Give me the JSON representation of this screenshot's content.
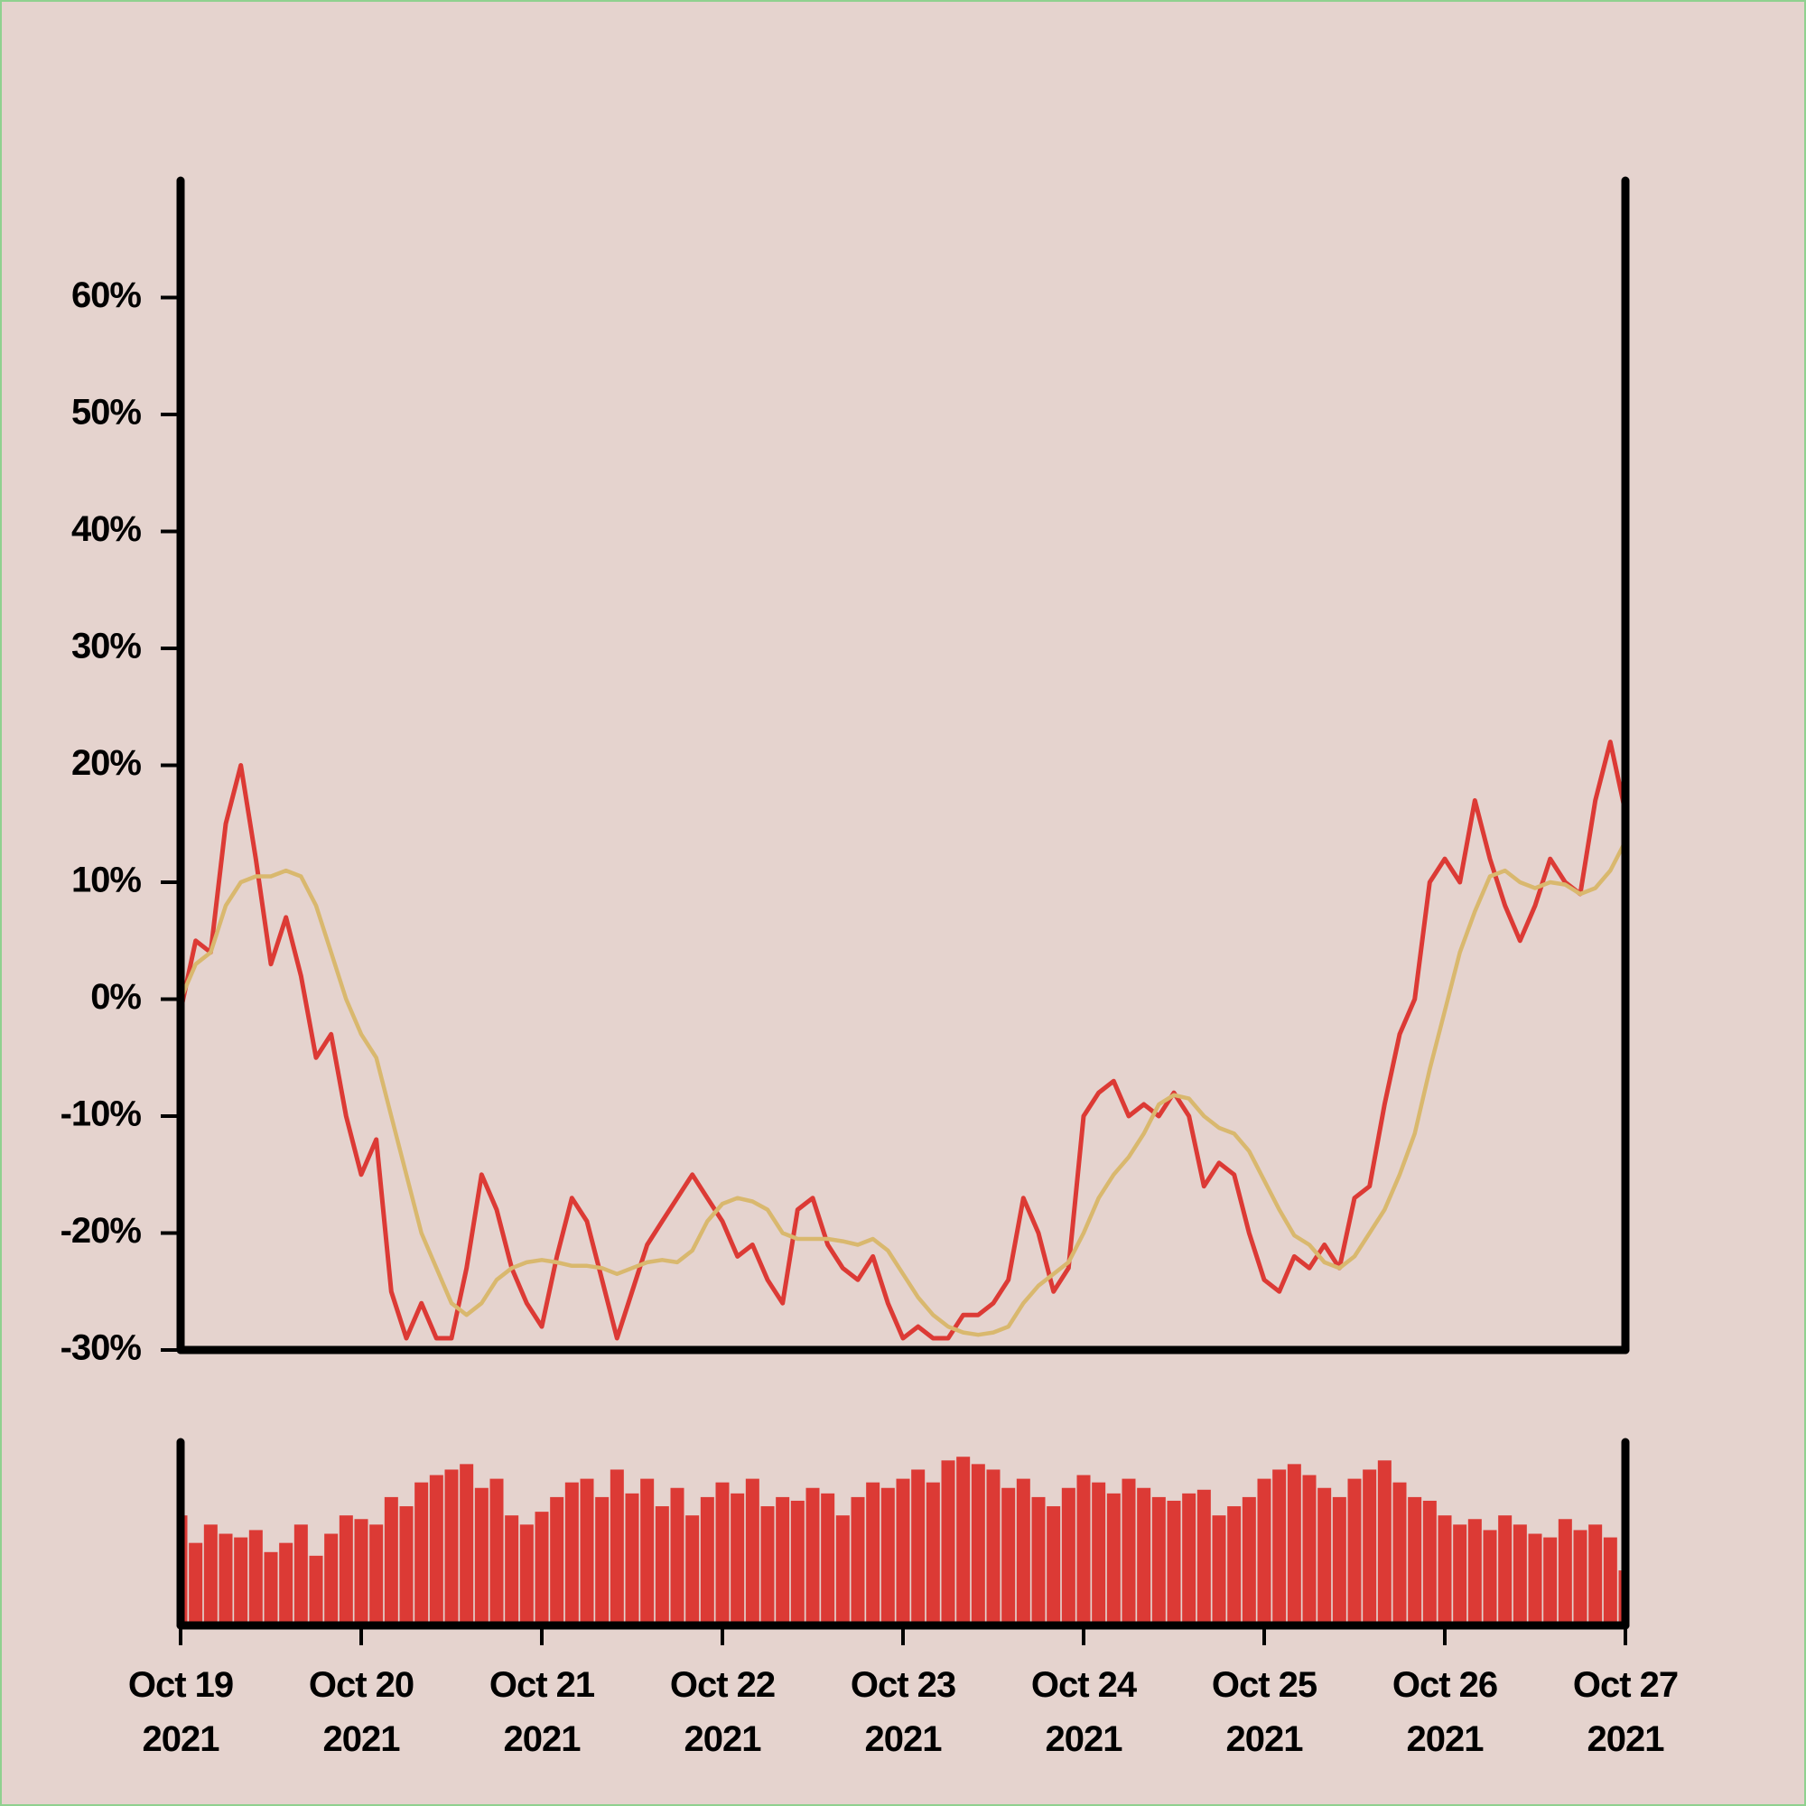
{
  "chart_data": {
    "type": "line",
    "x": [
      "2021-10-19T00:00",
      "2021-10-19T02:00",
      "2021-10-19T04:00",
      "2021-10-19T06:00",
      "2021-10-19T08:00",
      "2021-10-19T10:00",
      "2021-10-19T12:00",
      "2021-10-19T14:00",
      "2021-10-19T16:00",
      "2021-10-19T18:00",
      "2021-10-19T20:00",
      "2021-10-19T22:00",
      "2021-10-20T00:00",
      "2021-10-20T02:00",
      "2021-10-20T04:00",
      "2021-10-20T06:00",
      "2021-10-20T08:00",
      "2021-10-20T10:00",
      "2021-10-20T12:00",
      "2021-10-20T14:00",
      "2021-10-20T16:00",
      "2021-10-20T18:00",
      "2021-10-20T20:00",
      "2021-10-20T22:00",
      "2021-10-21T00:00",
      "2021-10-21T02:00",
      "2021-10-21T04:00",
      "2021-10-21T06:00",
      "2021-10-21T08:00",
      "2021-10-21T10:00",
      "2021-10-21T12:00",
      "2021-10-21T14:00",
      "2021-10-21T16:00",
      "2021-10-21T18:00",
      "2021-10-21T20:00",
      "2021-10-21T22:00",
      "2021-10-22T00:00",
      "2021-10-22T02:00",
      "2021-10-22T04:00",
      "2021-10-22T06:00",
      "2021-10-22T08:00",
      "2021-10-22T10:00",
      "2021-10-22T12:00",
      "2021-10-22T14:00",
      "2021-10-22T16:00",
      "2021-10-22T18:00",
      "2021-10-22T20:00",
      "2021-10-22T22:00",
      "2021-10-23T00:00",
      "2021-10-23T02:00",
      "2021-10-23T04:00",
      "2021-10-23T06:00",
      "2021-10-23T08:00",
      "2021-10-23T10:00",
      "2021-10-23T12:00",
      "2021-10-23T14:00",
      "2021-10-23T16:00",
      "2021-10-23T18:00",
      "2021-10-23T20:00",
      "2021-10-23T22:00",
      "2021-10-24T00:00",
      "2021-10-24T02:00",
      "2021-10-24T04:00",
      "2021-10-24T06:00",
      "2021-10-24T08:00",
      "2021-10-24T10:00",
      "2021-10-24T12:00",
      "2021-10-24T14:00",
      "2021-10-24T16:00",
      "2021-10-24T18:00",
      "2021-10-24T20:00",
      "2021-10-24T22:00",
      "2021-10-25T00:00",
      "2021-10-25T02:00",
      "2021-10-25T04:00",
      "2021-10-25T06:00",
      "2021-10-25T08:00",
      "2021-10-25T10:00",
      "2021-10-25T12:00",
      "2021-10-25T14:00",
      "2021-10-25T16:00",
      "2021-10-25T18:00",
      "2021-10-25T20:00",
      "2021-10-25T22:00",
      "2021-10-26T00:00",
      "2021-10-26T02:00",
      "2021-10-26T04:00",
      "2021-10-26T06:00",
      "2021-10-26T08:00",
      "2021-10-26T10:00",
      "2021-10-26T12:00",
      "2021-10-26T14:00",
      "2021-10-26T16:00",
      "2021-10-26T18:00",
      "2021-10-26T20:00",
      "2021-10-26T22:00",
      "2021-10-27T00:00"
    ],
    "series": [
      {
        "color": "#dc3a35",
        "values": [
          -1,
          5,
          4,
          15,
          20,
          12,
          3,
          7,
          2,
          -5,
          -3,
          -10,
          -15,
          -12,
          -25,
          -29,
          -26,
          -29,
          -29,
          -23,
          -15,
          -18,
          -23,
          -26,
          -28,
          -22,
          -17,
          -19,
          -24,
          -29,
          -25,
          -21,
          -19,
          -17,
          -15,
          -17,
          -19,
          -22,
          -21,
          -24,
          -26,
          -18,
          -17,
          -21,
          -23,
          -24,
          -22,
          -26,
          -29,
          -28,
          -29,
          -29,
          -27,
          -27,
          -26,
          -24,
          -17,
          -20,
          -25,
          -23,
          -10,
          -8,
          -7,
          -10,
          -9,
          -10,
          -8,
          -10,
          -16,
          -14,
          -15,
          -20,
          -24,
          -25,
          -22,
          -23,
          -21,
          -23,
          -17,
          -16,
          -9,
          -3,
          0,
          10,
          12,
          10,
          17,
          12,
          8,
          5,
          8,
          12,
          10,
          9,
          17,
          22,
          16
        ]
      },
      {
        "color": "#d9b86e",
        "values": [
          0,
          3,
          4,
          8,
          10,
          10.5,
          10.5,
          11,
          10.5,
          8,
          4,
          0,
          -3,
          -5,
          -10,
          -15,
          -20,
          -23,
          -26,
          -27,
          -26,
          -24,
          -23,
          -22.5,
          -22.3,
          -22.5,
          -22.8,
          -22.8,
          -23,
          -23.5,
          -23,
          -22.5,
          -22.3,
          -22.5,
          -21.5,
          -19,
          -17.5,
          -17,
          -17.3,
          -18,
          -20,
          -20.5,
          -20.5,
          -20.5,
          -20.7,
          -21,
          -20.5,
          -21.5,
          -23.5,
          -25.5,
          -27,
          -28,
          -28.5,
          -28.7,
          -28.5,
          -28,
          -26,
          -24.5,
          -23.5,
          -22.5,
          -20,
          -17,
          -15,
          -13.5,
          -11.5,
          -9,
          -8.2,
          -8.5,
          -10,
          -11,
          -11.5,
          -13,
          -15.5,
          -18,
          -20.2,
          -21,
          -22.5,
          -23,
          -22,
          -20,
          -18,
          -15,
          -11.5,
          -6,
          -1,
          4,
          7.5,
          10.5,
          11,
          10,
          9.5,
          10,
          9.8,
          9,
          9.5,
          11,
          13.5
        ]
      },
      {
        "type": "bar",
        "axis": "y2",
        "color": "#dc3a35",
        "values": [
          60,
          45,
          55,
          50,
          48,
          52,
          40,
          45,
          55,
          38,
          50,
          60,
          58,
          55,
          70,
          65,
          78,
          82,
          85,
          88,
          75,
          80,
          60,
          55,
          62,
          70,
          78,
          80,
          70,
          85,
          72,
          80,
          65,
          75,
          60,
          70,
          78,
          72,
          80,
          65,
          70,
          68,
          75,
          72,
          60,
          70,
          78,
          75,
          80,
          85,
          78,
          90,
          92,
          88,
          85,
          75,
          80,
          70,
          65,
          75,
          82,
          78,
          72,
          80,
          75,
          70,
          68,
          72,
          74,
          60,
          65,
          70,
          80,
          85,
          88,
          82,
          75,
          70,
          80,
          85,
          90,
          78,
          70,
          68,
          60,
          55,
          58,
          52,
          60,
          55,
          50,
          48,
          58,
          52,
          55,
          48,
          30
        ]
      }
    ],
    "xlim": [
      "2021-10-19T00:00",
      "2021-10-27T00:00"
    ],
    "xticks": [
      {
        "value": "2021-10-19T00:00",
        "label": "Oct 19\n2021"
      },
      {
        "value": "2021-10-20T00:00",
        "label": "Oct 20\n2021"
      },
      {
        "value": "2021-10-21T00:00",
        "label": "Oct 21\n2021"
      },
      {
        "value": "2021-10-22T00:00",
        "label": "Oct 22\n2021"
      },
      {
        "value": "2021-10-23T00:00",
        "label": "Oct 23\n2021"
      },
      {
        "value": "2021-10-24T00:00",
        "label": "Oct 24\n2021"
      },
      {
        "value": "2021-10-25T00:00",
        "label": "Oct 25\n2021"
      },
      {
        "value": "2021-10-26T00:00",
        "label": "Oct 26\n2021"
      },
      {
        "value": "2021-10-27T00:00",
        "label": "Oct 27\n2021"
      }
    ],
    "ylim": [
      -30,
      70
    ],
    "yticks": [
      {
        "value": -30,
        "label": "-30%"
      },
      {
        "value": -20,
        "label": "-20%"
      },
      {
        "value": -10,
        "label": "-10%"
      },
      {
        "value": 0,
        "label": "0%"
      },
      {
        "value": 10,
        "label": "10%"
      },
      {
        "value": 20,
        "label": "20%"
      },
      {
        "value": 30,
        "label": "30%"
      },
      {
        "value": 40,
        "label": "40%"
      },
      {
        "value": 50,
        "label": "50%"
      },
      {
        "value": 60,
        "label": "60%"
      }
    ],
    "y2lim": [
      0,
      100
    ],
    "grid": false
  }
}
